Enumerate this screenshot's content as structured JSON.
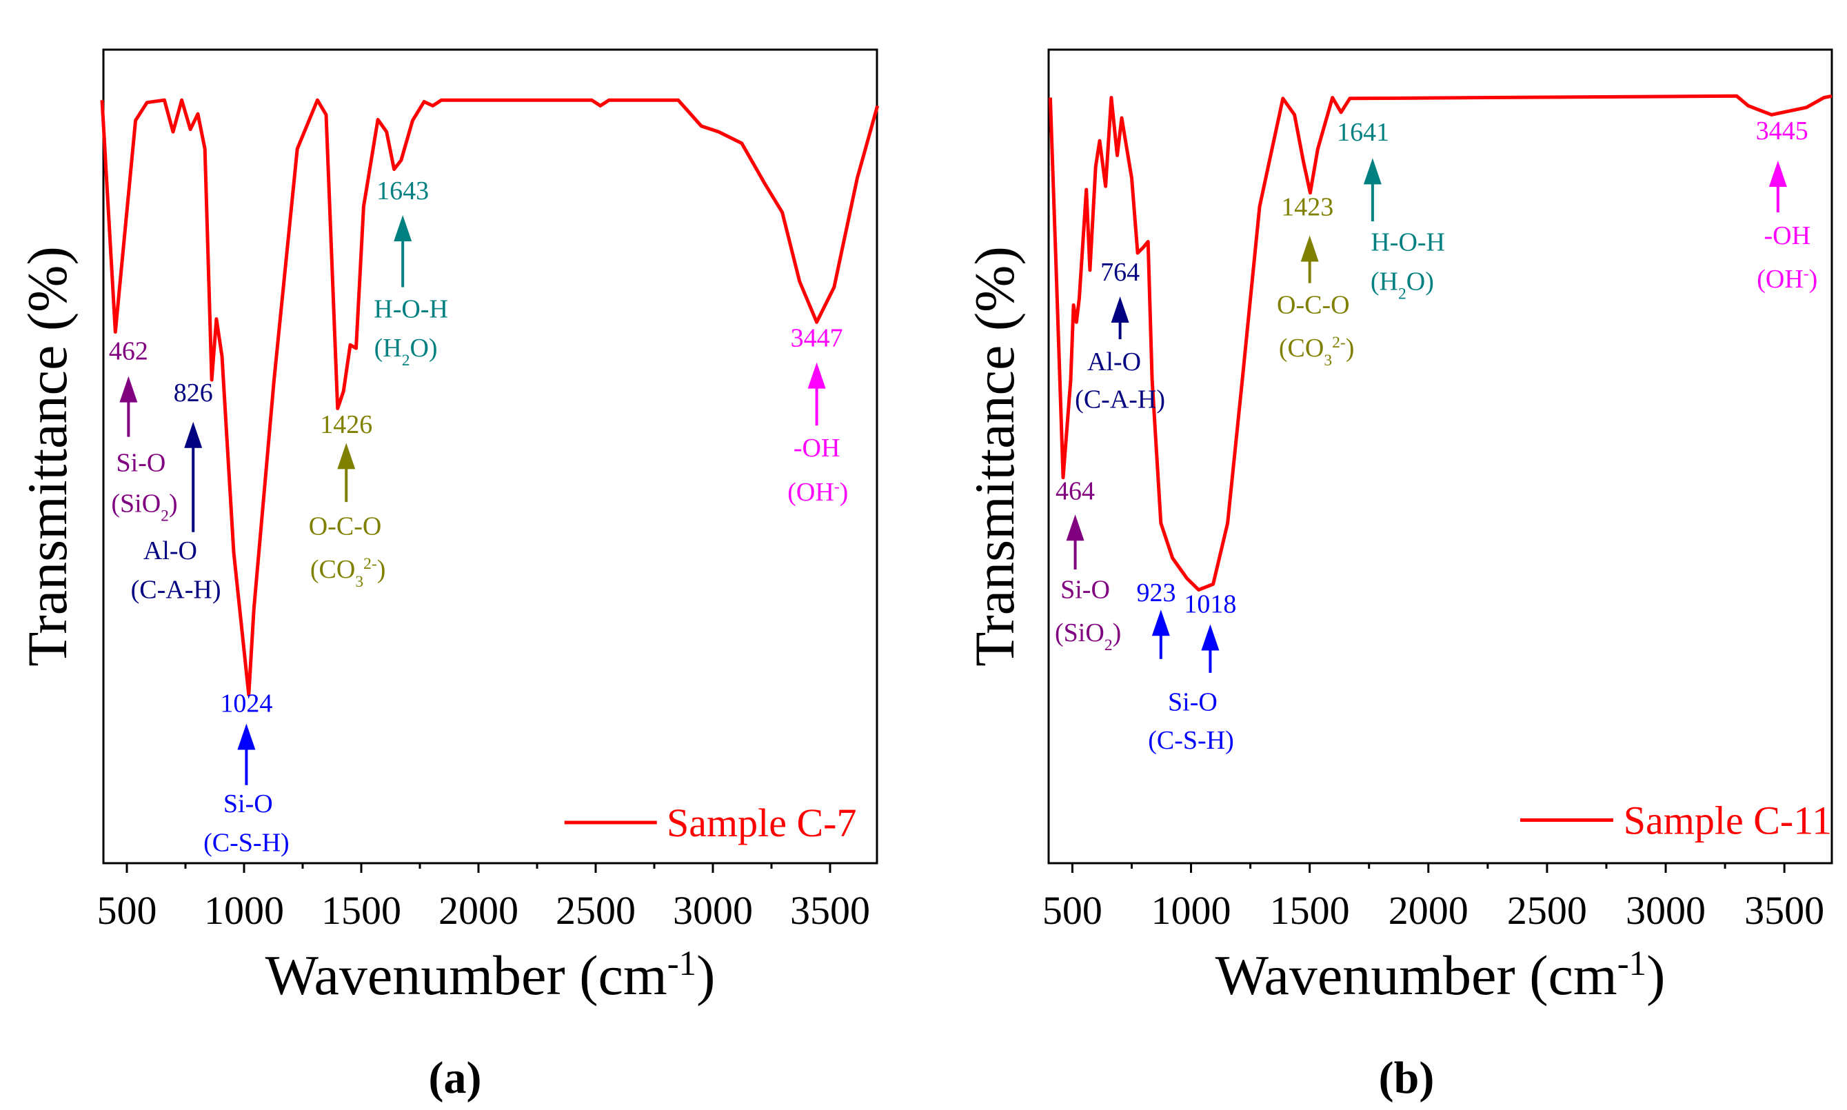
{
  "chart_data": [
    {
      "panel_label": "(a)",
      "type": "line",
      "xlabel": "Wavenumber (cm-1)",
      "xlabel_parts": [
        [
          "Wavenumber (cm",
          ""
        ],
        [
          "-1",
          "sup"
        ],
        [
          ")",
          ""
        ]
      ],
      "ylabel": "Transmittance (%)",
      "xlim": [
        400,
        3700
      ],
      "ylim": [
        0,
        100
      ],
      "y_units": "relative (no tick values shown)",
      "xticks": [
        500,
        1000,
        1500,
        2000,
        2500,
        3000,
        3500
      ],
      "tick_labels": [
        "500",
        "1000",
        "1500",
        "2000",
        "2500",
        "3000",
        "3500"
      ],
      "grid": false,
      "legend_position": "bottom-right",
      "series": [
        {
          "name": "Sample C-7",
          "color": "#FF0000",
          "x": [
            394,
            451,
            537,
            586,
            660,
            697,
            734,
            771,
            803,
            833,
            862,
            882,
            906,
            956,
            1020,
            1042,
            1128,
            1227,
            1313,
            1350,
            1399,
            1424,
            1453,
            1478,
            1510,
            1571,
            1608,
            1640,
            1670,
            1719,
            1768,
            1805,
            1842,
            2483,
            2520,
            2557,
            2852,
            2951,
            3025,
            3123,
            3222,
            3296,
            3370,
            3443,
            3517,
            3616,
            3702
          ],
          "y": [
            93.8,
            65.3,
            91.3,
            93.5,
            93.8,
            89.9,
            93.8,
            90.2,
            92.1,
            87.8,
            59.4,
            66.9,
            62.3,
            38.2,
            20.7,
            31.3,
            59.4,
            87.8,
            93.8,
            92,
            55.9,
            58,
            63.7,
            63.3,
            80.7,
            91.4,
            89.9,
            85.3,
            86.4,
            91.3,
            93.6,
            93.1,
            93.8,
            93.8,
            93.1,
            93.8,
            93.8,
            90.6,
            89.9,
            88.5,
            83.5,
            80,
            71.5,
            66.5,
            70.8,
            84.2,
            93.1
          ]
        }
      ],
      "annotations": [
        {
          "value": "462",
          "color": "#800080",
          "lines": [
            [
              [
                "Si-O",
                ""
              ]
            ],
            [
              [
                "(SiO",
                ""
              ],
              [
                "2",
                "sub"
              ],
              [
                ")",
                ""
              ]
            ]
          ]
        },
        {
          "value": "826",
          "color": "#000080",
          "lines": [
            [
              [
                "Al-O",
                ""
              ]
            ],
            [
              [
                "(C-A-H)",
                ""
              ]
            ]
          ]
        },
        {
          "value": "1024",
          "color": "#0000FF",
          "lines": [
            [
              [
                "Si-O",
                ""
              ]
            ],
            [
              [
                "(C-S-H)",
                ""
              ]
            ]
          ]
        },
        {
          "value": "1426",
          "color": "#808000",
          "lines": [
            [
              [
                "O-C-O",
                ""
              ]
            ],
            [
              [
                "(CO",
                ""
              ],
              [
                "3",
                "sub"
              ],
              [
                "2-",
                "sup"
              ],
              [
                ")",
                ""
              ]
            ]
          ]
        },
        {
          "value": "1643",
          "color": "#008080",
          "lines": [
            [
              [
                "H-O-H",
                ""
              ]
            ],
            [
              [
                "(H",
                ""
              ],
              [
                "2",
                "sub"
              ],
              [
                "O)",
                ""
              ]
            ]
          ]
        },
        {
          "value": "3447",
          "color": "#FF00FF",
          "lines": [
            [
              [
                "-OH",
                ""
              ]
            ],
            [
              [
                "(OH",
                ""
              ],
              [
                "-",
                "sup"
              ],
              [
                ")",
                ""
              ]
            ]
          ]
        }
      ]
    },
    {
      "panel_label": "(b)",
      "type": "line",
      "xlabel": "Wavenumber (cm-1)",
      "xlabel_parts": [
        [
          "Wavenumber (cm",
          ""
        ],
        [
          "-1",
          "sup"
        ],
        [
          ")",
          ""
        ]
      ],
      "ylabel": "Transmittance (%)",
      "xlim": [
        400,
        3700
      ],
      "ylim": [
        0,
        100
      ],
      "y_units": "relative (no tick values shown)",
      "xticks": [
        500,
        1000,
        1500,
        2000,
        2500,
        3000,
        3500
      ],
      "tick_labels": [
        "500",
        "1000",
        "1500",
        "2000",
        "2500",
        "3000",
        "3500"
      ],
      "grid": false,
      "legend_position": "bottom-right",
      "series": [
        {
          "name": "Sample C-11",
          "color": "#FF0000",
          "x": [
            407,
            431,
            461,
            493,
            505,
            517,
            529,
            559,
            574,
            598,
            615,
            640,
            664,
            689,
            708,
            750,
            775,
            799,
            819,
            836,
            873,
            922,
            983,
            1032,
            1093,
            1154,
            1216,
            1289,
            1387,
            1436,
            1473,
            1502,
            1534,
            1596,
            1632,
            1669,
            3299,
            3348,
            3446,
            3593,
            3667,
            3700
          ],
          "y": [
            94.1,
            73.6,
            47.4,
            59.4,
            68.6,
            66.5,
            69.4,
            82.8,
            72.9,
            85.6,
            88.8,
            83.2,
            94.1,
            87,
            91.6,
            84.2,
            75,
            75.7,
            76.4,
            59.4,
            41.8,
            37.5,
            35,
            33.6,
            34.3,
            41.8,
            59.4,
            80.7,
            94,
            92,
            86.3,
            82.4,
            87.8,
            94.1,
            92.3,
            94,
            94.3,
            93.1,
            92,
            92.9,
            94.1,
            94.3
          ]
        }
      ],
      "annotations": [
        {
          "value": "464",
          "color": "#800080",
          "lines": [
            [
              [
                "Si-O",
                ""
              ]
            ],
            [
              [
                "(SiO",
                ""
              ],
              [
                "2",
                "sub"
              ],
              [
                ")",
                ""
              ]
            ]
          ]
        },
        {
          "value": "764",
          "color": "#000080",
          "lines": [
            [
              [
                "Al-O",
                ""
              ]
            ],
            [
              [
                "(C-A-H)",
                ""
              ]
            ]
          ]
        },
        {
          "value": "923",
          "color": "#0000FF",
          "lines": []
        },
        {
          "value": "1018",
          "color": "#0000FF",
          "lines": [
            [
              [
                "Si-O",
                ""
              ]
            ],
            [
              [
                "(C-S-H)",
                ""
              ]
            ]
          ]
        },
        {
          "value": "1423",
          "color": "#808000",
          "lines": [
            [
              [
                "O-C-O",
                ""
              ]
            ],
            [
              [
                "(CO",
                ""
              ],
              [
                "3",
                "sub"
              ],
              [
                "2-",
                "sup"
              ],
              [
                ")",
                ""
              ]
            ]
          ]
        },
        {
          "value": "1641",
          "color": "#008080",
          "lines": [
            [
              [
                "H-O-H",
                ""
              ]
            ],
            [
              [
                "(H",
                ""
              ],
              [
                "2",
                "sub"
              ],
              [
                "O)",
                ""
              ]
            ]
          ]
        },
        {
          "value": "3445",
          "color": "#FF00FF",
          "lines": [
            [
              [
                "-OH",
                ""
              ]
            ],
            [
              [
                "(OH",
                ""
              ],
              [
                "-",
                "sup"
              ],
              [
                ")",
                ""
              ]
            ]
          ]
        }
      ]
    }
  ]
}
